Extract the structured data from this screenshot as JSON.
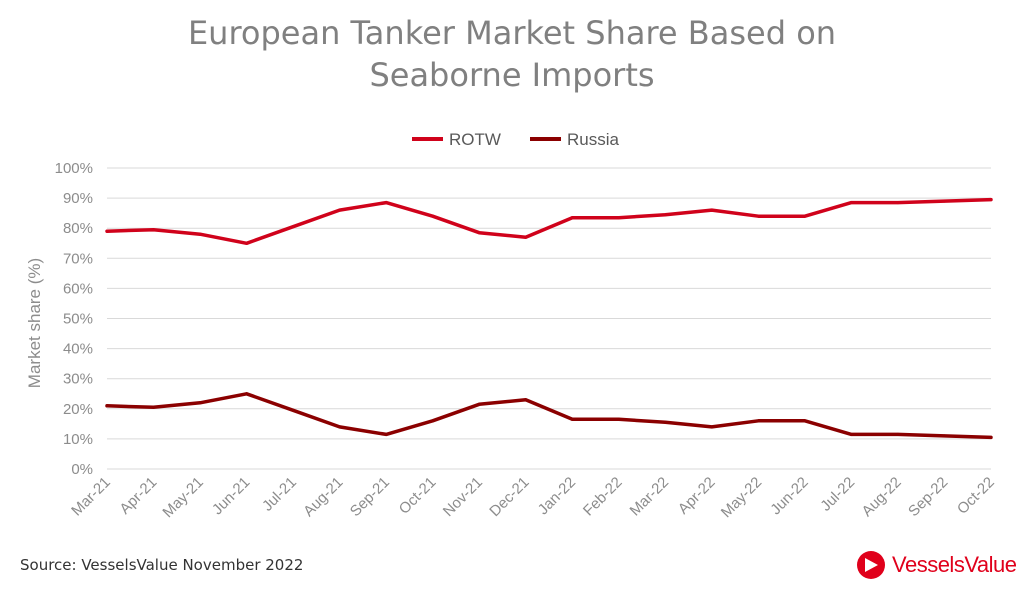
{
  "chart_data": {
    "type": "line",
    "title_lines": [
      "European Tanker Market Share Based on",
      "Seaborne Imports"
    ],
    "xlabel": "",
    "ylabel": "Market share (%)",
    "ylim": [
      0,
      100
    ],
    "y_ticks": [
      "0%",
      "10%",
      "20%",
      "30%",
      "40%",
      "50%",
      "60%",
      "70%",
      "80%",
      "90%",
      "100%"
    ],
    "grid": true,
    "legend_position": "top-center",
    "categories": [
      "Mar-21",
      "Apr-21",
      "May-21",
      "Jun-21",
      "Jul-21",
      "Aug-21",
      "Sep-21",
      "Oct-21",
      "Nov-21",
      "Dec-21",
      "Jan-22",
      "Feb-22",
      "Mar-22",
      "Apr-22",
      "May-22",
      "Jun-22",
      "Jul-22",
      "Aug-22",
      "Sep-22",
      "Oct-22"
    ],
    "series": [
      {
        "name": "ROTW",
        "color": "#d0021b",
        "values": [
          79,
          79.5,
          78,
          75,
          80.5,
          86,
          88.5,
          84,
          78.5,
          77,
          83.5,
          83.5,
          84.5,
          86,
          84,
          84,
          88.5,
          88.5,
          89,
          89.5
        ]
      },
      {
        "name": "Russia",
        "color": "#8b0000",
        "values": [
          21,
          20.5,
          22,
          25,
          19.5,
          14,
          11.5,
          16,
          21.5,
          23,
          16.5,
          16.5,
          15.5,
          14,
          16,
          16,
          11.5,
          11.5,
          11,
          10.5
        ]
      }
    ]
  },
  "footer": {
    "source": "Source: VesselsValue November 2022",
    "logo_text": "VesselsValue",
    "logo_color": "#e0001b"
  }
}
